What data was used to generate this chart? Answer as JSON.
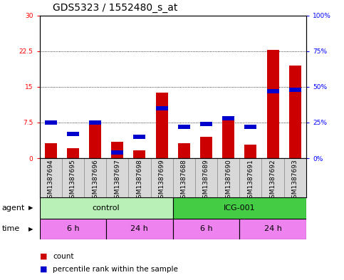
{
  "title": "GDS5323 / 1552480_s_at",
  "samples": [
    "GSM1387694",
    "GSM1387695",
    "GSM1387696",
    "GSM1387697",
    "GSM1387698",
    "GSM1387699",
    "GSM1387688",
    "GSM1387689",
    "GSM1387690",
    "GSM1387691",
    "GSM1387692",
    "GSM1387693"
  ],
  "count_values": [
    3.2,
    2.1,
    7.8,
    3.5,
    1.6,
    13.8,
    3.1,
    4.5,
    8.5,
    2.8,
    22.8,
    19.5
  ],
  "percentile_values": [
    25.0,
    17.0,
    25.0,
    4.0,
    15.0,
    35.0,
    22.0,
    24.0,
    28.0,
    22.0,
    47.0,
    48.0
  ],
  "ylim_left": [
    0,
    30
  ],
  "ylim_right": [
    0,
    100
  ],
  "yticks_left": [
    0,
    7.5,
    15,
    22.5,
    30
  ],
  "ytick_labels_left": [
    "0",
    "7.5",
    "15",
    "22.5",
    "30"
  ],
  "yticks_right": [
    0,
    25,
    50,
    75,
    100
  ],
  "ytick_labels_right": [
    "0%",
    "25%",
    "50%",
    "75%",
    "100%"
  ],
  "bar_color_count": "#cc0000",
  "bar_color_percentile": "#0000cc",
  "bar_width": 0.55,
  "grid_color": "black",
  "bg_color": "#d8d8d8",
  "agent_light_color": "#b8f0b8",
  "agent_dark_color": "#44cc44",
  "time_color": "#ee82ee",
  "title_fontsize": 10,
  "tick_fontsize": 6.5,
  "label_fontsize": 8,
  "legend_fontsize": 7.5
}
